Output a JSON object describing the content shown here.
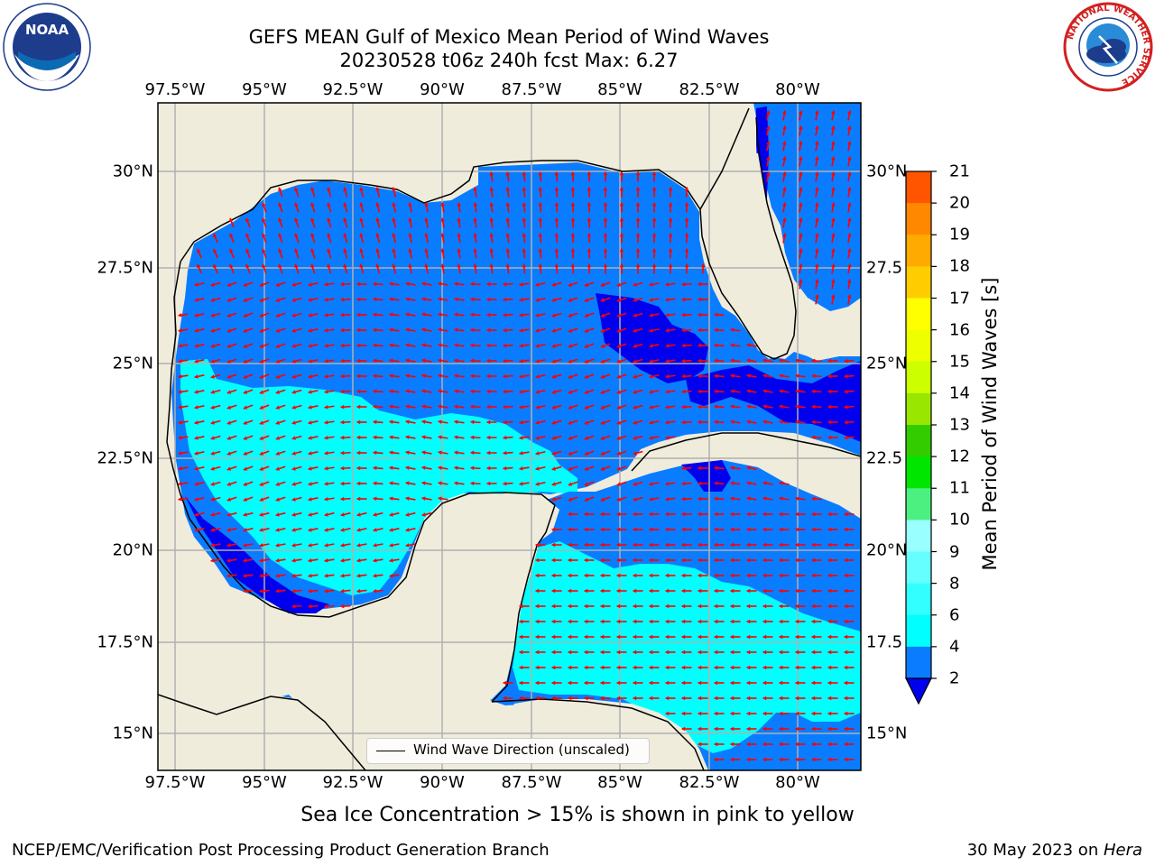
{
  "header": {
    "title_line1": "GEFS MEAN Gulf of Mexico Mean Period of Wind Waves",
    "title_line2": "20230528 t06z 240h fcst   Max: 6.27"
  },
  "logos": {
    "left": "NOAA",
    "right_ring_text": "NATIONAL WEATHER SERVICE"
  },
  "map": {
    "lon_ticks": [
      "97.5°W",
      "95°W",
      "92.5°W",
      "90°W",
      "87.5°W",
      "85°W",
      "82.5°W",
      "80°W"
    ],
    "lat_ticks_left": [
      "30°N",
      "27.5°N",
      "25°N",
      "22.5°N",
      "20°N",
      "17.5°N",
      "15°N"
    ],
    "lat_ticks_right": [
      "30°N",
      "27.5",
      "25°N",
      "22.5",
      "20°N",
      "17.5",
      "15°N"
    ],
    "legend_label": "Wind Wave Direction (unscaled)",
    "land_color": "#efecdc",
    "arrow_color": "#ff0000",
    "grid": true
  },
  "colorbar": {
    "label": "Mean Period of Wind Waves [s]",
    "ticks": [
      "2",
      "4",
      "6",
      "8",
      "9",
      "10",
      "11",
      "12",
      "13",
      "14",
      "15",
      "16",
      "17",
      "18",
      "19",
      "20",
      "21"
    ],
    "colors": [
      "#0a7cff",
      "#00ffff",
      "#32ffff",
      "#66ffff",
      "#99ffff",
      "#4cf080",
      "#00e600",
      "#33cc00",
      "#99e600",
      "#ccff00",
      "#eeff00",
      "#ffff00",
      "#ffcc00",
      "#ffaa00",
      "#ff8800",
      "#ff5500",
      "#ff2200",
      "#ff0000"
    ],
    "under_color": "#0000ee"
  },
  "notes": {
    "ice_note": "Sea Ice Concentration > 15% is shown in pink to yellow"
  },
  "footer": {
    "left": "NCEP/EMC/Verification Post Processing Product Generation Branch",
    "right_date": "30 May 2023 on ",
    "right_host": "Hera"
  }
}
